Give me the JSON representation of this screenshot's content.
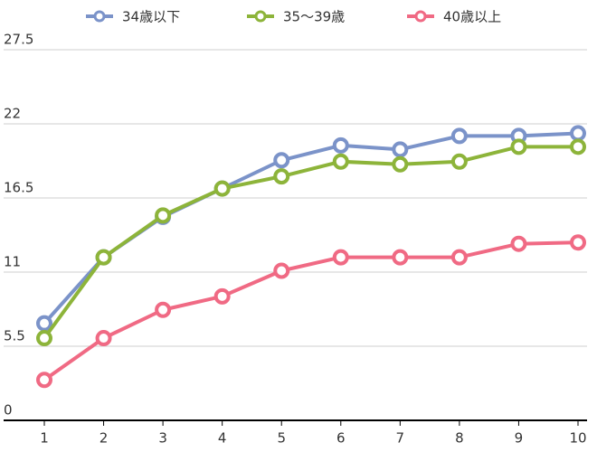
{
  "chart_data": {
    "type": "line",
    "x": [
      1,
      2,
      3,
      4,
      5,
      6,
      7,
      8,
      9,
      10
    ],
    "xlim": [
      1,
      10
    ],
    "xticks": [
      1,
      2,
      3,
      4,
      5,
      6,
      7,
      8,
      9,
      10
    ],
    "ylim": [
      0,
      27.5
    ],
    "yticks": [
      0,
      5.5,
      11,
      16.5,
      22,
      27.5
    ],
    "grid": true,
    "legend": "top",
    "series": [
      {
        "name": "34歳以下",
        "color": "#7b93c9",
        "values": [
          7.2,
          12.1,
          15.1,
          17.2,
          19.3,
          20.4,
          20.1,
          21.1,
          21.1,
          21.3
        ]
      },
      {
        "name": "35～39歳",
        "color": "#8db43a",
        "values": [
          6.1,
          12.1,
          15.2,
          17.2,
          18.1,
          19.2,
          19.0,
          19.2,
          20.3,
          20.3
        ]
      },
      {
        "name": "40歳以上",
        "color": "#f06a84",
        "values": [
          3.0,
          6.1,
          8.2,
          9.2,
          11.1,
          12.1,
          12.1,
          12.1,
          13.1,
          13.2
        ]
      }
    ]
  }
}
